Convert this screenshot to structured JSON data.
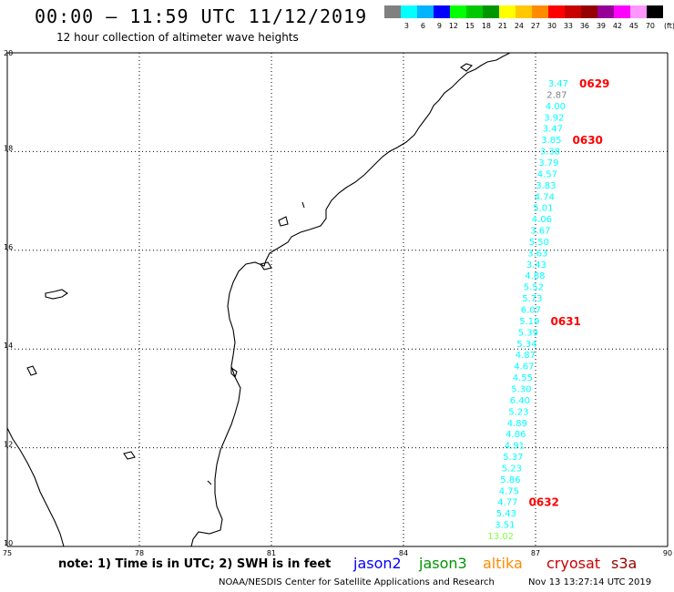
{
  "header": {
    "title": "00:00 – 11:59 UTC 11/12/2019",
    "subtitle": "12 hour collection of altimeter wave heights"
  },
  "legend": {
    "unit": "(ft)",
    "colors": [
      "#808080",
      "#00ffff",
      "#00b4ff",
      "#0000ff",
      "#00ff00",
      "#00c800",
      "#009600",
      "#ffff00",
      "#ffc800",
      "#ff8c00",
      "#ff0000",
      "#c80000",
      "#960000",
      "#960096",
      "#ff00ff",
      "#ff96ff",
      "#000000"
    ],
    "labels": [
      "3",
      "6",
      "9",
      "12",
      "15",
      "18",
      "21",
      "24",
      "27",
      "30",
      "33",
      "36",
      "39",
      "42",
      "45",
      "70"
    ]
  },
  "axes": {
    "x_ticks": [
      "75",
      "78",
      "81",
      "84",
      "87",
      "90"
    ],
    "y_ticks": [
      "20",
      "18",
      "16",
      "14",
      "12",
      "10"
    ]
  },
  "wave_heights": [
    {
      "value": "3.47",
      "color": "#00ffff"
    },
    {
      "value": "2.87",
      "color": "#808080"
    },
    {
      "value": "4.00",
      "color": "#00ffff"
    },
    {
      "value": "3.92",
      "color": "#00ffff"
    },
    {
      "value": "3.47",
      "color": "#00ffff"
    },
    {
      "value": "3.85",
      "color": "#00ffff"
    },
    {
      "value": "3.38",
      "color": "#00ffff"
    },
    {
      "value": "3.79",
      "color": "#00ffff"
    },
    {
      "value": "4.57",
      "color": "#00ffff"
    },
    {
      "value": "3.83",
      "color": "#00ffff"
    },
    {
      "value": "4.74",
      "color": "#00ffff"
    },
    {
      "value": "5.01",
      "color": "#00ffff"
    },
    {
      "value": "4.06",
      "color": "#00ffff"
    },
    {
      "value": "3.67",
      "color": "#00ffff"
    },
    {
      "value": "5.50",
      "color": "#00ffff"
    },
    {
      "value": "3.63",
      "color": "#00ffff"
    },
    {
      "value": "3.43",
      "color": "#00ffff"
    },
    {
      "value": "4.88",
      "color": "#00ffff"
    },
    {
      "value": "5.52",
      "color": "#00ffff"
    },
    {
      "value": "5.73",
      "color": "#00ffff"
    },
    {
      "value": "6.07",
      "color": "#00ffff"
    },
    {
      "value": "5.19",
      "color": "#00ffff"
    },
    {
      "value": "5.39",
      "color": "#00ffff"
    },
    {
      "value": "5.34",
      "color": "#00ffff"
    },
    {
      "value": "4.87",
      "color": "#00ffff"
    },
    {
      "value": "4.67",
      "color": "#00ffff"
    },
    {
      "value": "4.55",
      "color": "#00ffff"
    },
    {
      "value": "5.30",
      "color": "#00ffff"
    },
    {
      "value": "6.40",
      "color": "#00ffff"
    },
    {
      "value": "5.23",
      "color": "#00ffff"
    },
    {
      "value": "4.89",
      "color": "#00ffff"
    },
    {
      "value": "4.86",
      "color": "#00ffff"
    },
    {
      "value": "4.91",
      "color": "#00ffff"
    },
    {
      "value": "5.37",
      "color": "#00ffff"
    },
    {
      "value": "5.23",
      "color": "#00ffff"
    },
    {
      "value": "5.86",
      "color": "#00ffff"
    },
    {
      "value": "4.75",
      "color": "#00ffff"
    },
    {
      "value": "4.77",
      "color": "#00ffff"
    },
    {
      "value": "5.43",
      "color": "#00ffff"
    },
    {
      "value": "3.51",
      "color": "#00ffff"
    },
    {
      "value": "13.02",
      "color": "#80ff40"
    }
  ],
  "time_marks": [
    {
      "label": "0629",
      "color": "#ff0000"
    },
    {
      "label": "0630",
      "color": "#ff0000"
    },
    {
      "label": "0631",
      "color": "#ff0000"
    },
    {
      "label": "0632",
      "color": "#ff0000"
    }
  ],
  "note": "note: 1) Time is in UTC; 2) SWH is in feet",
  "satellites": [
    {
      "name": "jason2",
      "color": "#0000ff"
    },
    {
      "name": "jason3",
      "color": "#009600"
    },
    {
      "name": "altika",
      "color": "#ff8c00"
    },
    {
      "name": "cryosat",
      "color": "#c80000"
    },
    {
      "name": "s3a",
      "color": "#960000"
    }
  ],
  "footer": "NOAA/NESDIS Center for Satellite Applications and Research",
  "timestamp": "Nov 13 13:27:14 UTC 2019"
}
